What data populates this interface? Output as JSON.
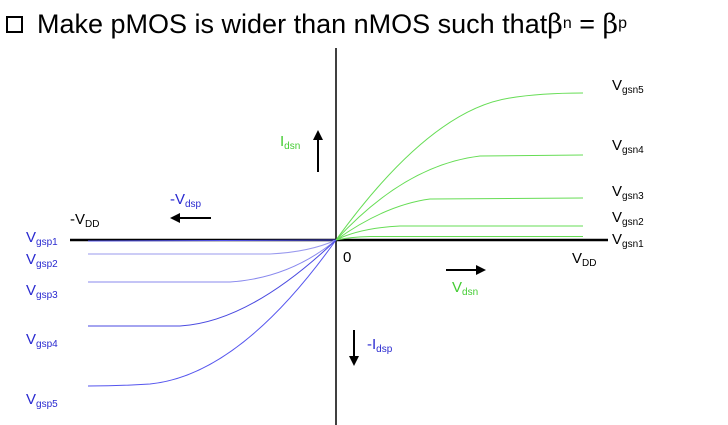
{
  "heading": {
    "text_before": "Make pMOS is wider than nMOS such that ",
    "beta": "β",
    "sub_n": "n",
    "equals": " = ",
    "sub_p": "p"
  },
  "labels": {
    "vgsn5": {
      "main": "V",
      "sub": "gsn5"
    },
    "vgsn4": {
      "main": "V",
      "sub": "gsn4"
    },
    "vgsn3": {
      "main": "V",
      "sub": "gsn3"
    },
    "vgsn2": {
      "main": "V",
      "sub": "gsn2"
    },
    "vgsn1": {
      "main": "V",
      "sub": "gsn1"
    },
    "vgsp1": {
      "main": "V",
      "sub": "gsp1"
    },
    "vgsp2": {
      "main": "V",
      "sub": "gsp2"
    },
    "vgsp3": {
      "main": "V",
      "sub": "gsp3"
    },
    "vgsp4": {
      "main": "V",
      "sub": "gsp4"
    },
    "vgsp5": {
      "main": "V",
      "sub": "gsp5"
    },
    "idsn": {
      "main": "I",
      "sub": "dsn"
    },
    "vdsn": {
      "main": "V",
      "sub": "dsn"
    },
    "neg_idsp": {
      "main": "-I",
      "sub": "dsp"
    },
    "neg_vdsp": {
      "main": "-V",
      "sub": "dsp"
    },
    "neg_vdd": {
      "main": "-V",
      "sub": "DD"
    },
    "vdd": {
      "main": "V",
      "sub": "DD"
    },
    "zero": "0"
  },
  "colors": {
    "nmos": "#66dd55",
    "pmos": "#4a4ae0",
    "axis": "#000000"
  }
}
